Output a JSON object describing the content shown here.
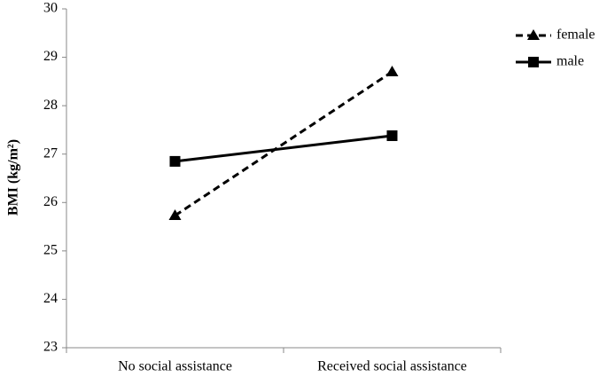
{
  "chart_data": {
    "type": "line",
    "y_label": "BMI (kg/m²)",
    "categories": [
      "No social assistance",
      "Received social assistance"
    ],
    "series": [
      {
        "name": "female",
        "color": "#000000",
        "line_style": "dashed",
        "marker": "triangle",
        "values": [
          25.73,
          28.7
        ]
      },
      {
        "name": "male",
        "color": "#000000",
        "line_style": "solid",
        "marker": "square",
        "values": [
          26.85,
          27.38
        ]
      }
    ],
    "ylim": [
      23,
      30
    ],
    "yticks": [
      23,
      24,
      25,
      26,
      27,
      28,
      29,
      30
    ],
    "grid": false,
    "legend": "top-right"
  }
}
